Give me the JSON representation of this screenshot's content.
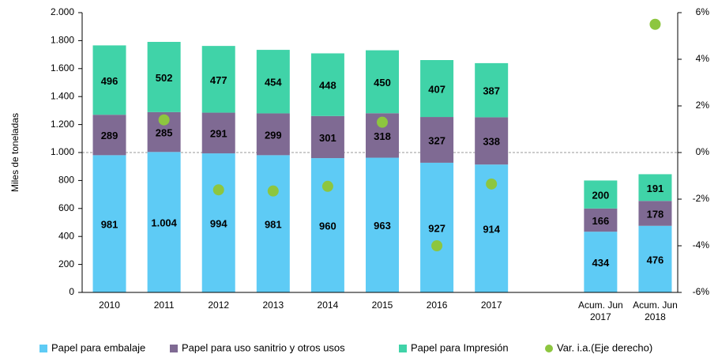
{
  "chart_data": {
    "type": "bar",
    "stacked": true,
    "categories": [
      "2010",
      "2011",
      "2012",
      "2013",
      "2014",
      "2015",
      "2016",
      "2017",
      null,
      "Acum. Jun 2017",
      "Acum. Jun 2018"
    ],
    "series": [
      {
        "name": "Papel para embalaje",
        "color": "#5ecbf5",
        "values": [
          981,
          1004,
          994,
          981,
          960,
          963,
          927,
          914,
          null,
          434,
          476
        ],
        "value_labels": [
          "981",
          "1.004",
          "994",
          "981",
          "960",
          "963",
          "927",
          "914",
          null,
          "434",
          "476"
        ]
      },
      {
        "name": "Papel para uso sanitrio y otros usos",
        "color": "#7f6a93",
        "values": [
          289,
          285,
          291,
          299,
          301,
          318,
          327,
          338,
          null,
          166,
          178
        ]
      },
      {
        "name": "Papel para Impresión",
        "color": "#40d3a8",
        "values": [
          496,
          502,
          477,
          454,
          448,
          450,
          407,
          387,
          null,
          200,
          191
        ]
      },
      {
        "name": "Var. i.a.(Eje derecho)",
        "color": "#8dc63f",
        "type": "scatter",
        "axis": "y2",
        "values": [
          null,
          1.4,
          -1.6,
          -1.65,
          -1.45,
          1.3,
          -4.0,
          -1.35,
          null,
          null,
          5.5
        ]
      }
    ],
    "y_label": "Miles de toneladas",
    "ylim": [
      0,
      2000
    ],
    "yticks": [
      0,
      200,
      400,
      600,
      800,
      {
        "value": 1000,
        "label": "1.000"
      },
      {
        "value": 1200,
        "label": "1.200"
      },
      {
        "value": 1400,
        "label": "1.400"
      },
      {
        "value": 1600,
        "label": "1.600"
      },
      {
        "value": 1800,
        "label": "1.800"
      },
      {
        "value": 2000,
        "label": "2.000"
      }
    ],
    "y2lim": [
      -6,
      6
    ],
    "y2ticks": [
      {
        "value": -6,
        "label": "-6%"
      },
      {
        "value": -4,
        "label": "-4%"
      },
      {
        "value": -2,
        "label": "-2%"
      },
      {
        "value": 0,
        "label": "0%"
      },
      {
        "value": 2,
        "label": "2%"
      },
      {
        "value": 4,
        "label": "4%"
      },
      {
        "value": 6,
        "label": "6%"
      }
    ],
    "legend": "bottom"
  }
}
